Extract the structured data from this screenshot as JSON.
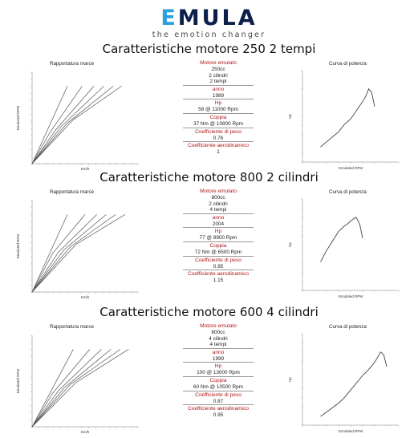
{
  "brand": {
    "logo_first": "E",
    "logo_rest": "MULA",
    "tagline": "the emotion changer",
    "accent": "#2aa0dc",
    "dark": "#0b1f4a"
  },
  "labels": {
    "gear_chart_title": "Rapportatura marce",
    "power_chart_title": "Curva di potenza",
    "gear_y_label": "Emulated RPM",
    "gear_x_label": "Km/h",
    "power_y_label": "Hp",
    "power_x_label": "Emulated RPM",
    "spec_color": "#b01818"
  },
  "sections": [
    {
      "title": "Caratteristiche motore 250 2 tempi",
      "specs": [
        {
          "head": "Motore emulato",
          "values": [
            "250cc",
            "2 cilindri",
            "2 tempi"
          ]
        },
        {
          "head": "anno",
          "values": [
            "1989"
          ]
        },
        {
          "head": "Hp",
          "values": [
            "58 @ 11000 Rpm"
          ]
        },
        {
          "head": "Coppia",
          "values": [
            "37 Nm @ 10800 Rpm"
          ]
        },
        {
          "head": "Coefficiente di peso",
          "values": [
            "0.76"
          ]
        },
        {
          "head": "Coefficiente aerodinamico",
          "values": [
            "1"
          ]
        }
      ]
    },
    {
      "title": "Caratteristiche motore 800 2 cilindri",
      "specs": [
        {
          "head": "Motore emulato",
          "values": [
            "800cc",
            "2 cilindri",
            "4 tempi"
          ]
        },
        {
          "head": "anno",
          "values": [
            "2004"
          ]
        },
        {
          "head": "Hp",
          "values": [
            "77 @ 8900 Rpm"
          ]
        },
        {
          "head": "Coppia",
          "values": [
            "72 Nm @ 6500 Rpm"
          ]
        },
        {
          "head": "Coefficiente di peso",
          "values": [
            "0.95"
          ]
        },
        {
          "head": "Coefficiente aerodinamico",
          "values": [
            "1.15"
          ]
        }
      ]
    },
    {
      "title": "Caratteristiche motore 600 4 cilindri",
      "specs": [
        {
          "head": "Motore emulato",
          "values": [
            "600cc",
            "4 cilindri",
            "4 tempi"
          ]
        },
        {
          "head": "anno",
          "values": [
            "1999"
          ]
        },
        {
          "head": "Hp",
          "values": [
            "100 @ 13000 Rpm"
          ]
        },
        {
          "head": "Coppia",
          "values": [
            "60 Nm @ 10500 Rpm"
          ]
        },
        {
          "head": "Coefficiente di peso",
          "values": [
            "0.87"
          ]
        },
        {
          "head": "Coefficiente aerodinamico",
          "values": [
            "0.95"
          ]
        }
      ]
    }
  ],
  "chart_data": [
    {
      "type": "line",
      "section": 1,
      "title": "Rapportatura marce",
      "xlabel": "Km/h",
      "ylabel": "Emulated RPM",
      "series": [
        {
          "values": [
            [
              0,
              0
            ],
            [
              60,
              12000
            ]
          ]
        },
        {
          "values": [
            [
              0,
              0
            ],
            [
              30,
              4800
            ],
            [
              85,
              12000
            ]
          ]
        },
        {
          "values": [
            [
              0,
              0
            ],
            [
              40,
              5200
            ],
            [
              105,
              12000
            ]
          ]
        },
        {
          "values": [
            [
              0,
              0
            ],
            [
              50,
              5800
            ],
            [
              122,
              12000
            ]
          ]
        },
        {
          "values": [
            [
              0,
              0
            ],
            [
              60,
              6300
            ],
            [
              138,
              12000
            ]
          ]
        },
        {
          "values": [
            [
              0,
              0
            ],
            [
              70,
              6800
            ],
            [
              152,
              12000
            ]
          ]
        }
      ]
    },
    {
      "type": "line",
      "section": 1,
      "title": "Curva di potenza",
      "xlabel": "Emulated RPM",
      "ylabel": "Hp",
      "x": [
        3000,
        4000,
        5000,
        6000,
        7000,
        8000,
        9000,
        10000,
        10500,
        11000,
        11500,
        12000
      ],
      "values": [
        12,
        16,
        20,
        24,
        30,
        34,
        41,
        48,
        52,
        58,
        55,
        44
      ]
    },
    {
      "type": "line",
      "section": 2,
      "title": "Rapportatura marce",
      "xlabel": "Km/h",
      "ylabel": "Emulated RPM",
      "series": [
        {
          "values": [
            [
              0,
              0
            ],
            [
              60,
              12000
            ]
          ]
        },
        {
          "values": [
            [
              0,
              0
            ],
            [
              35,
              6000
            ],
            [
              90,
              12000
            ]
          ]
        },
        {
          "values": [
            [
              0,
              0
            ],
            [
              45,
              6200
            ],
            [
              110,
              12000
            ]
          ]
        },
        {
          "values": [
            [
              0,
              0
            ],
            [
              55,
              6600
            ],
            [
              126,
              12000
            ]
          ]
        },
        {
          "values": [
            [
              0,
              0
            ],
            [
              65,
              7000
            ],
            [
              142,
              12000
            ]
          ]
        },
        {
          "values": [
            [
              0,
              0
            ],
            [
              75,
              7400
            ],
            [
              158,
              12000
            ]
          ]
        }
      ]
    },
    {
      "type": "line",
      "section": 2,
      "title": "Curva di potenza",
      "xlabel": "Emulated RPM",
      "ylabel": "Hp",
      "x": [
        3000,
        4000,
        5000,
        6000,
        7000,
        7500,
        8000,
        8900,
        9500,
        10000
      ],
      "values": [
        30,
        42,
        52,
        62,
        68,
        70,
        73,
        77,
        70,
        55
      ]
    },
    {
      "type": "line",
      "section": 3,
      "title": "Rapportatura marce",
      "xlabel": "Km/h",
      "ylabel": "Emulated RPM",
      "series": [
        {
          "values": [
            [
              0,
              0
            ],
            [
              70,
              15000
            ]
          ]
        },
        {
          "values": [
            [
              0,
              0
            ],
            [
              35,
              6500
            ],
            [
              98,
              15000
            ]
          ]
        },
        {
          "values": [
            [
              0,
              0
            ],
            [
              45,
              7000
            ],
            [
              118,
              15000
            ]
          ]
        },
        {
          "values": [
            [
              0,
              0
            ],
            [
              55,
              7600
            ],
            [
              134,
              15000
            ]
          ]
        },
        {
          "values": [
            [
              0,
              0
            ],
            [
              65,
              8200
            ],
            [
              150,
              15000
            ]
          ]
        },
        {
          "values": [
            [
              0,
              0
            ],
            [
              75,
              8600
            ],
            [
              164,
              15000
            ]
          ]
        }
      ]
    },
    {
      "type": "line",
      "section": 3,
      "title": "Curva di potenza",
      "xlabel": "Emulated RPM",
      "ylabel": "Hp",
      "x": [
        3000,
        4000,
        5000,
        6000,
        7000,
        8000,
        9000,
        10000,
        11000,
        12000,
        13000,
        13500,
        14000
      ],
      "values": [
        12,
        18,
        24,
        30,
        38,
        48,
        58,
        68,
        76,
        86,
        100,
        96,
        80
      ]
    }
  ]
}
